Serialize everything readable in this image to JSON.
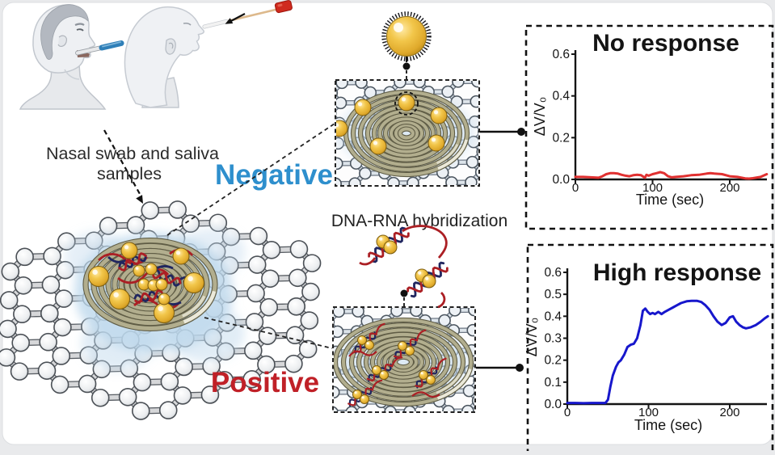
{
  "colors": {
    "negative_label": "#2e8fcd",
    "positive_label": "#c02027",
    "no_response_line": "#e03030",
    "high_response_line": "#1717cc",
    "gold_nanoparticle": "#eec33f",
    "coil": "#b2ae8e",
    "dna_red": "#ab1f24",
    "dna_blue": "#20265f",
    "glow_blue": "#bdd8ec"
  },
  "labels": {
    "samples_line1": "Nasal swab and saliva",
    "samples_line2": "samples",
    "negative": "Negative",
    "positive": "Positive",
    "hybridization": "DNA-RNA hybridization"
  },
  "chart_data": [
    {
      "type": "line",
      "title": "No response",
      "xlabel": "Time (sec)",
      "ylabel": "ΔV/V₀",
      "xlim": [
        0,
        250
      ],
      "ylim": [
        0,
        0.6
      ],
      "xticks": [
        0,
        100,
        200
      ],
      "yticks": [
        0,
        0.2,
        0.4,
        0.6
      ],
      "line_color": "#e03030",
      "x": [
        0,
        10,
        20,
        30,
        35,
        40,
        45,
        50,
        55,
        60,
        65,
        70,
        75,
        80,
        85,
        90,
        92,
        95,
        100,
        105,
        110,
        115,
        120,
        125,
        130,
        140,
        150,
        160,
        170,
        175,
        180,
        190,
        200,
        210,
        220,
        225,
        230,
        240,
        248
      ],
      "y": [
        0.012,
        0.012,
        0.01,
        0.008,
        0.015,
        0.025,
        0.03,
        0.03,
        0.028,
        0.022,
        0.018,
        0.015,
        0.02,
        0.022,
        0.02,
        0.008,
        0.022,
        0.018,
        0.025,
        0.03,
        0.035,
        0.03,
        0.015,
        0.01,
        0.012,
        0.015,
        0.02,
        0.022,
        0.028,
        0.03,
        0.028,
        0.025,
        0.015,
        0.012,
        0.005,
        0.004,
        0.006,
        0.012,
        0.025
      ]
    },
    {
      "type": "line",
      "title": "High response",
      "xlabel": "Time (sec)",
      "ylabel": "ΔV/V₀",
      "xlim": [
        0,
        250
      ],
      "ylim": [
        0,
        0.6
      ],
      "xticks": [
        0,
        100,
        200
      ],
      "yticks": [
        0,
        0.1,
        0.2,
        0.3,
        0.4,
        0.5,
        0.6
      ],
      "line_color": "#1717cc",
      "x": [
        0,
        10,
        20,
        30,
        40,
        47,
        50,
        53,
        56,
        60,
        63,
        66,
        70,
        74,
        78,
        82,
        86,
        90,
        93,
        96,
        99,
        102,
        105,
        108,
        112,
        116,
        120,
        125,
        130,
        135,
        140,
        147,
        153,
        160,
        165,
        170,
        175,
        180,
        185,
        190,
        195,
        200,
        204,
        208,
        212,
        216,
        220,
        226,
        232,
        238,
        243,
        247
      ],
      "y": [
        0.005,
        0.005,
        0.004,
        0.005,
        0.005,
        0.005,
        0.02,
        0.08,
        0.13,
        0.17,
        0.19,
        0.2,
        0.225,
        0.26,
        0.27,
        0.275,
        0.3,
        0.36,
        0.425,
        0.435,
        0.42,
        0.41,
        0.415,
        0.41,
        0.42,
        0.41,
        0.42,
        0.43,
        0.44,
        0.45,
        0.46,
        0.468,
        0.47,
        0.47,
        0.465,
        0.45,
        0.43,
        0.4,
        0.375,
        0.36,
        0.37,
        0.395,
        0.4,
        0.375,
        0.36,
        0.35,
        0.345,
        0.35,
        0.36,
        0.375,
        0.39,
        0.4
      ]
    }
  ]
}
